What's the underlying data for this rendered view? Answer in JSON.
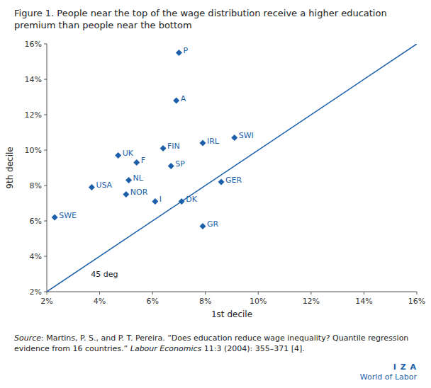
{
  "chart_data": {
    "type": "scatter",
    "title": "Figure 1. People near the top of the wage distribution receive a higher education premium than people near the bottom",
    "x_label": "1st decile",
    "y_label": "9th decile",
    "x": [
      0.07,
      0.069,
      0.064,
      0.079,
      0.091,
      0.047,
      0.054,
      0.067,
      0.051,
      0.086,
      0.037,
      0.05,
      0.061,
      0.071,
      0.023,
      0.079
    ],
    "values": [
      0.155,
      0.128,
      0.101,
      0.104,
      0.107,
      0.097,
      0.093,
      0.091,
      0.083,
      0.082,
      0.079,
      0.075,
      0.071,
      0.071,
      0.062,
      0.057
    ],
    "point_labels": [
      "P",
      "A",
      "FIN",
      "IRL",
      "SWI",
      "UK",
      "F",
      "SP",
      "NL",
      "GER",
      "USA",
      "NOR",
      "I",
      "DK",
      "SWE",
      "GR"
    ],
    "color": "#1b5faa",
    "marker": "diamond",
    "reference_line": {
      "label": "45 deg",
      "x": [
        0.02,
        0.16
      ],
      "values": [
        0.02,
        0.16
      ],
      "color": "#1b5faa"
    },
    "xlim": [
      0.02,
      0.16
    ],
    "ylim": [
      0.02,
      0.16
    ],
    "xticks": [
      {
        "value": 0.02,
        "label": "2%"
      },
      {
        "value": 0.04,
        "label": "4%"
      },
      {
        "value": 0.06,
        "label": "6%"
      },
      {
        "value": 0.08,
        "label": "8%"
      },
      {
        "value": 0.1,
        "label": "10%"
      },
      {
        "value": 0.12,
        "label": "12%"
      },
      {
        "value": 0.14,
        "label": "14%"
      },
      {
        "value": 0.16,
        "label": "16%"
      }
    ],
    "yticks": [
      {
        "value": 0.02,
        "label": "2%"
      },
      {
        "value": 0.04,
        "label": "4%"
      },
      {
        "value": 0.06,
        "label": "6%"
      },
      {
        "value": 0.08,
        "label": "8%"
      },
      {
        "value": 0.1,
        "label": "10%"
      },
      {
        "value": 0.12,
        "label": "12%"
      },
      {
        "value": 0.14,
        "label": "14%"
      },
      {
        "value": 0.16,
        "label": "16%"
      }
    ],
    "grid": false,
    "source": [
      "Source",
      ": Martins, P. S., and P. T. Pereira. “Does education reduce wage inequality? Quantile regression evidence from 16 countries.” ",
      "Labour Economics",
      " 11:3 (2004): 355–371 [4]."
    ],
    "logo": [
      "I  Z  A",
      "World of Labor"
    ]
  }
}
